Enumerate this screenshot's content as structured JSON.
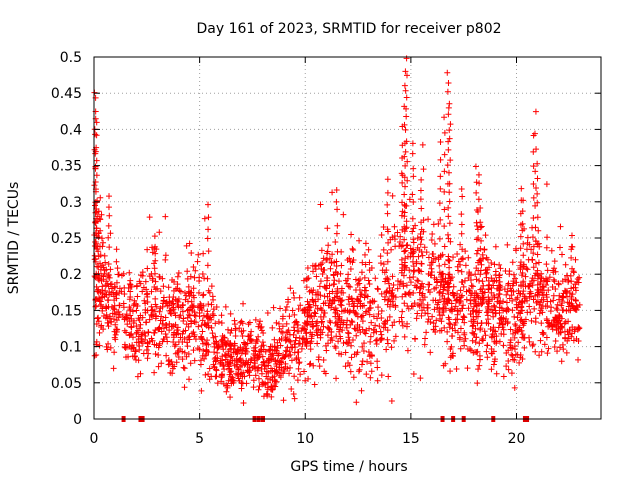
{
  "chart_data": {
    "type": "scatter",
    "title": "Day 161 of 2023, SRMTID for receiver p802",
    "xlabel": "GPS time / hours",
    "ylabel": "SRMTID / TECUs",
    "xlim": [
      0,
      24
    ],
    "ylim": [
      0,
      0.5
    ],
    "xticks": [
      0,
      5,
      10,
      15,
      20
    ],
    "xtick_labels": [
      "0",
      "5",
      "10",
      "15",
      "20"
    ],
    "yticks": [
      0,
      0.05,
      0.1,
      0.15,
      0.2,
      0.25,
      0.3,
      0.35,
      0.4,
      0.45,
      0.5
    ],
    "ytick_labels": [
      "0",
      "0.05",
      "0.1",
      "0.15",
      "0.2",
      "0.25",
      "0.3",
      "0.35",
      "0.4",
      "0.45",
      "0.5"
    ],
    "grid": true,
    "marker": "+",
    "color": "#ff0000",
    "envelope": {
      "x": [
        0.0,
        0.3,
        0.6,
        1.0,
        1.5,
        2.0,
        2.5,
        3.0,
        3.5,
        4.0,
        4.5,
        5.0,
        5.5,
        6.0,
        6.5,
        7.0,
        7.5,
        8.0,
        8.5,
        9.0,
        9.5,
        10.0,
        10.5,
        11.0,
        11.5,
        12.0,
        12.5,
        13.0,
        13.5,
        14.0,
        14.5,
        15.0,
        15.5,
        16.0,
        16.5,
        17.0,
        17.5,
        18.0,
        18.5,
        19.0,
        19.5,
        20.0,
        20.5,
        21.0,
        21.5,
        22.0,
        22.5,
        23.0
      ],
      "median": [
        0.2,
        0.19,
        0.16,
        0.15,
        0.15,
        0.13,
        0.14,
        0.15,
        0.14,
        0.13,
        0.13,
        0.14,
        0.12,
        0.09,
        0.08,
        0.08,
        0.09,
        0.07,
        0.08,
        0.09,
        0.1,
        0.12,
        0.15,
        0.16,
        0.15,
        0.15,
        0.14,
        0.14,
        0.13,
        0.17,
        0.2,
        0.22,
        0.19,
        0.18,
        0.16,
        0.16,
        0.15,
        0.15,
        0.16,
        0.14,
        0.14,
        0.15,
        0.16,
        0.17,
        0.16,
        0.14,
        0.15,
        0.16
      ],
      "spread": [
        0.07,
        0.05,
        0.04,
        0.04,
        0.04,
        0.04,
        0.05,
        0.05,
        0.05,
        0.04,
        0.04,
        0.05,
        0.04,
        0.03,
        0.03,
        0.03,
        0.03,
        0.03,
        0.03,
        0.03,
        0.04,
        0.04,
        0.05,
        0.06,
        0.05,
        0.05,
        0.05,
        0.05,
        0.05,
        0.06,
        0.07,
        0.07,
        0.06,
        0.06,
        0.05,
        0.05,
        0.05,
        0.05,
        0.05,
        0.05,
        0.05,
        0.05,
        0.05,
        0.05,
        0.05,
        0.04,
        0.04,
        0.04
      ],
      "points_total": 2400
    },
    "spikes": [
      {
        "x": 0.05,
        "y": 0.45
      },
      {
        "x": 0.08,
        "y": 0.44
      },
      {
        "x": 0.1,
        "y": 0.41
      },
      {
        "x": 0.12,
        "y": 0.37
      },
      {
        "x": 0.2,
        "y": 0.29
      },
      {
        "x": 0.7,
        "y": 0.31
      },
      {
        "x": 2.9,
        "y": 0.25
      },
      {
        "x": 5.4,
        "y": 0.3
      },
      {
        "x": 11.5,
        "y": 0.32
      },
      {
        "x": 13.9,
        "y": 0.33
      },
      {
        "x": 14.6,
        "y": 0.4
      },
      {
        "x": 14.7,
        "y": 0.46
      },
      {
        "x": 14.75,
        "y": 0.48
      },
      {
        "x": 14.8,
        "y": 0.5
      },
      {
        "x": 15.1,
        "y": 0.38
      },
      {
        "x": 15.5,
        "y": 0.33
      },
      {
        "x": 16.4,
        "y": 0.38
      },
      {
        "x": 16.6,
        "y": 0.42
      },
      {
        "x": 16.75,
        "y": 0.48
      },
      {
        "x": 16.8,
        "y": 0.46
      },
      {
        "x": 16.85,
        "y": 0.44
      },
      {
        "x": 17.4,
        "y": 0.32
      },
      {
        "x": 18.1,
        "y": 0.35
      },
      {
        "x": 18.2,
        "y": 0.34
      },
      {
        "x": 18.3,
        "y": 0.29
      },
      {
        "x": 19.2,
        "y": 0.21
      },
      {
        "x": 20.2,
        "y": 0.32
      },
      {
        "x": 20.3,
        "y": 0.3
      },
      {
        "x": 20.8,
        "y": 0.39
      },
      {
        "x": 20.9,
        "y": 0.42
      },
      {
        "x": 21.0,
        "y": 0.35
      },
      {
        "x": 22.6,
        "y": 0.25
      }
    ],
    "gap_markers_x": [
      1.4,
      2.2,
      2.3,
      7.6,
      7.8,
      8.0,
      16.5,
      17.0,
      17.5,
      18.9,
      20.4,
      20.5
    ]
  }
}
